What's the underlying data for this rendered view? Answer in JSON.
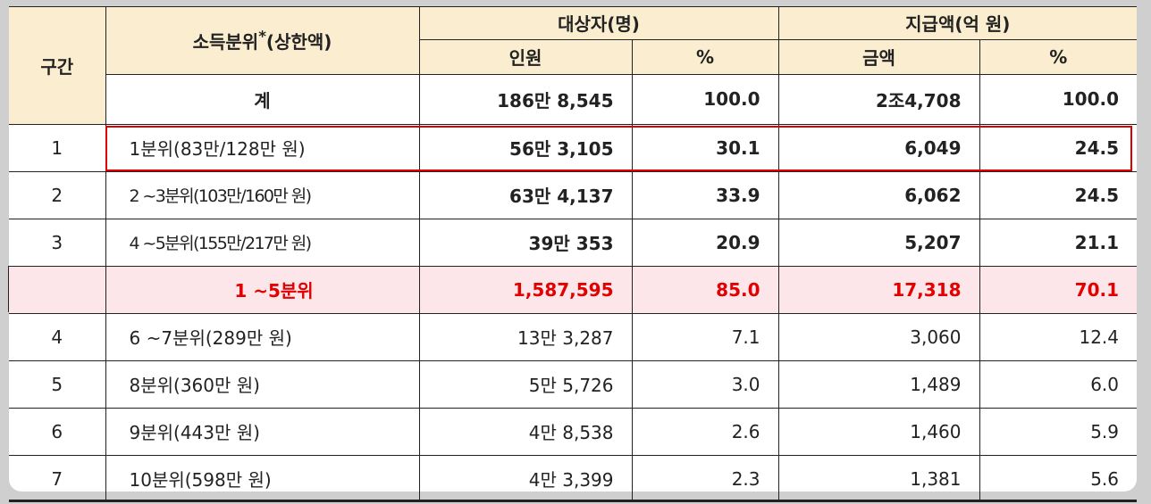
{
  "header": {
    "band": "구간",
    "quantile": "소득분위",
    "quantile_star": "*",
    "quantile_suffix": "(상한액)",
    "recipients": "대상자(명)",
    "amount": "지급액(억 원)",
    "people": "인원",
    "pct1": "%",
    "money": "금액",
    "pct2": "%"
  },
  "total": {
    "label": "계",
    "people": "186만 8,545",
    "pct1": "100.0",
    "amount": "2조4,708",
    "pct2": "100.0"
  },
  "rows": [
    {
      "band": "1",
      "label": "1분위(83만/128만 원)",
      "people": "56만 3,105",
      "pct1": "30.1",
      "amount": "6,049",
      "pct2": "24.5"
    },
    {
      "band": "2",
      "label": "2 ~3분위(103만/160만 원)",
      "people": "63만 4,137",
      "pct1": "33.9",
      "amount": "6,062",
      "pct2": "24.5"
    },
    {
      "band": "3",
      "label": "4 ~5분위(155만/217만 원)",
      "people": "39만 353",
      "pct1": "20.9",
      "amount": "5,207",
      "pct2": "21.1"
    }
  ],
  "subtotal": {
    "band": "",
    "label": "1 ~5분위",
    "people": "1,587,595",
    "pct1": "85.0",
    "amount": "17,318",
    "pct2": "70.1"
  },
  "rows2": [
    {
      "band": "4",
      "label": "6 ~7분위(289만 원)",
      "people": "13만 3,287",
      "pct1": "7.1",
      "amount": "3,060",
      "pct2": "12.4"
    },
    {
      "band": "5",
      "label": "8분위(360만 원)",
      "people": "5만 5,726",
      "pct1": "3.0",
      "amount": "1,489",
      "pct2": "6.0"
    },
    {
      "band": "6",
      "label": "9분위(443만 원)",
      "people": "4만 8,538",
      "pct1": "2.6",
      "amount": "1,460",
      "pct2": "5.9"
    },
    {
      "band": "7",
      "label": "10분위(598만 원)",
      "people": "4만 3,399",
      "pct1": "2.3",
      "amount": "1,381",
      "pct2": "5.6"
    }
  ],
  "colors": {
    "header_bg": "#fbeed0",
    "highlight_bg": "#fde6e9",
    "highlight_text": "#e20000",
    "frame": "#e00000"
  }
}
